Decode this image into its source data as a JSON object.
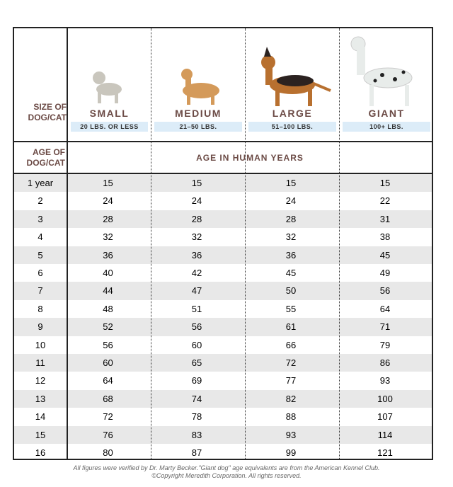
{
  "chart_data": {
    "type": "table",
    "row_header_label": "SIZE OF DOG/CAT",
    "age_header_label": "AGE OF DOG/CAT",
    "values_header": "AGE IN HUMAN YEARS",
    "columns": [
      {
        "name": "SMALL",
        "weight": "20 LBS. OR LESS",
        "icon": "pug-icon",
        "color": "#c9c6bd"
      },
      {
        "name": "MEDIUM",
        "weight": "21–50 LBS.",
        "icon": "spaniel-icon",
        "color": "#d49a5a"
      },
      {
        "name": "LARGE",
        "weight": "51–100 LBS.",
        "icon": "german-shepherd-icon",
        "color": "#b8702f"
      },
      {
        "name": "GIANT",
        "weight": "100+ LBS.",
        "icon": "great-dane-icon",
        "color": "#e8ecea"
      }
    ],
    "rows": [
      {
        "age": "1 year",
        "values": [
          15,
          15,
          15,
          15
        ]
      },
      {
        "age": "2",
        "values": [
          24,
          24,
          24,
          22
        ]
      },
      {
        "age": "3",
        "values": [
          28,
          28,
          28,
          31
        ]
      },
      {
        "age": "4",
        "values": [
          32,
          32,
          32,
          38
        ]
      },
      {
        "age": "5",
        "values": [
          36,
          36,
          36,
          45
        ]
      },
      {
        "age": "6",
        "values": [
          40,
          42,
          45,
          49
        ]
      },
      {
        "age": "7",
        "values": [
          44,
          47,
          50,
          56
        ]
      },
      {
        "age": "8",
        "values": [
          48,
          51,
          55,
          64
        ]
      },
      {
        "age": "9",
        "values": [
          52,
          56,
          61,
          71
        ]
      },
      {
        "age": "10",
        "values": [
          56,
          60,
          66,
          79
        ]
      },
      {
        "age": "11",
        "values": [
          60,
          65,
          72,
          86
        ]
      },
      {
        "age": "12",
        "values": [
          64,
          69,
          77,
          93
        ]
      },
      {
        "age": "13",
        "values": [
          68,
          74,
          82,
          100
        ]
      },
      {
        "age": "14",
        "values": [
          72,
          78,
          88,
          107
        ]
      },
      {
        "age": "15",
        "values": [
          76,
          83,
          93,
          114
        ]
      },
      {
        "age": "16",
        "values": [
          80,
          87,
          99,
          121
        ]
      }
    ]
  },
  "footer": {
    "line1": "All figures were verified by Dr. Marty Becker.\"Giant dog\" age equivalents are from the American Kennel Club.",
    "line2": "©Copyright Meredith Corporation. All rights reserved."
  },
  "colors": {
    "header_text": "#6b4a45",
    "pill": "#dcecf8",
    "stripe": "#e8e8e8"
  }
}
